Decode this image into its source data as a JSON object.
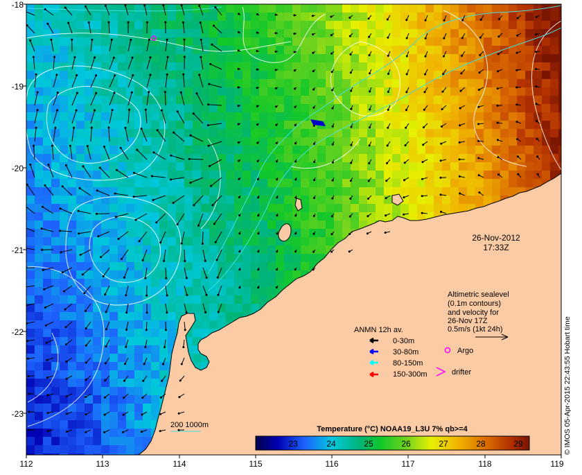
{
  "map": {
    "lat_labels": [
      "-18",
      "-19",
      "-20",
      "-21",
      "-22",
      "-23"
    ],
    "lon_labels": [
      "112",
      "113",
      "114",
      "115",
      "116",
      "117",
      "118",
      "119"
    ],
    "date": "26-Nov-2012",
    "time": "17:33Z",
    "altimetric_text": [
      "Altimetric sealevel",
      "(0.1m contours)",
      "and velocity for",
      "26-Nov 17Z",
      "0.5m/s (1kt 24h)"
    ],
    "anmn_title": "ANMN 12h av.",
    "anmn_items": [
      {
        "label": "0-30m",
        "color": "#000000"
      },
      {
        "label": "30-80m",
        "color": "#0000ff"
      },
      {
        "label": "80-150m",
        "color": "#00ffff"
      },
      {
        "label": "150-300m",
        "color": "#ff0000"
      }
    ],
    "argo_label": "Argo",
    "drifter_label": "drifter",
    "isobath_label": "200  1000m",
    "colorbar_title": "Temperature (°C) NOAA19_L3U 7% qb>=4",
    "colorbar_ticks": [
      "23",
      "24",
      "25",
      "26",
      "27",
      "28",
      "29"
    ],
    "credit": "© IMOS 05-Apr-2015 22:43:55 Hobart time",
    "colors": {
      "land": "#fbcba5",
      "isobath": "#40e0e0",
      "contour": "#ffffff",
      "argo": "#ff00ff"
    }
  }
}
